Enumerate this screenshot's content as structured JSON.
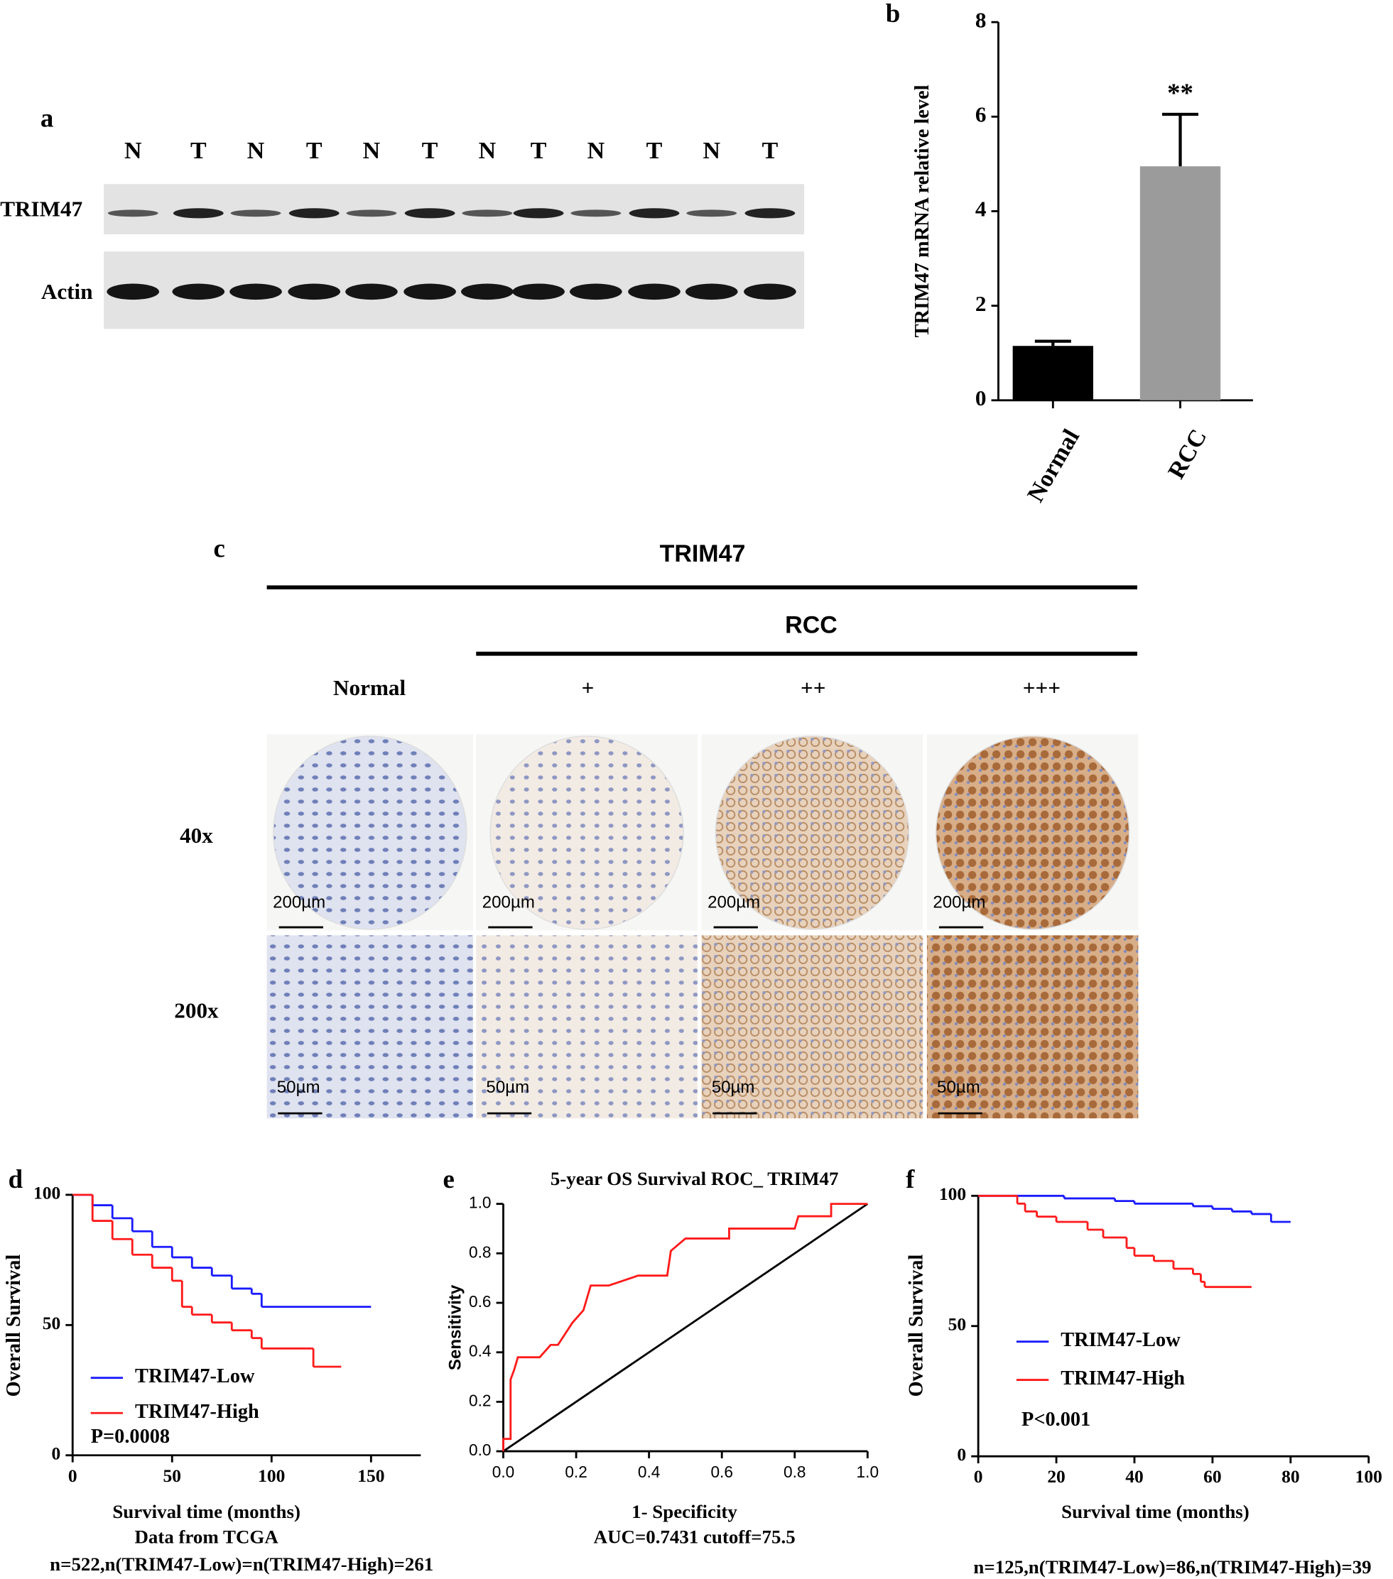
{
  "panel_labels": [
    "a",
    "b",
    "c",
    "d",
    "e",
    "f"
  ],
  "blot": {
    "lanes": [
      "N",
      "T",
      "N",
      "T",
      "N",
      "T",
      "N",
      "T",
      "N",
      "T",
      "N",
      "T"
    ],
    "rows": [
      "TRIM47",
      "Actin"
    ]
  },
  "ihc": {
    "title": "TRIM47",
    "group": "RCC",
    "columns": [
      "Normal",
      "+",
      "++",
      "+++"
    ],
    "rows": [
      "40x",
      "200x"
    ],
    "scale_bars": [
      "200µm",
      "50µm"
    ]
  },
  "chart_data": [
    {
      "type": "bar",
      "y_label": "TRIM47 mRNA relative level",
      "categories": [
        "Normal",
        "RCC"
      ],
      "values": [
        1.15,
        4.95
      ],
      "errors": [
        0.1,
        1.1
      ],
      "colors": [
        "#000000",
        "#9b9b9c"
      ],
      "annotation": "**",
      "ylim": [
        0,
        8
      ],
      "yticks": [
        0,
        2,
        4,
        6,
        8
      ]
    },
    {
      "type": "step",
      "y_label": "Overall Survival",
      "x_label": "Survival time (months)",
      "notes": [
        "Data from TCGA",
        "n=522,n(TRIM47-Low)=n(TRIM47-High)=261"
      ],
      "p_value": "P=0.0008",
      "legend": "lower left",
      "xlim": [
        0,
        175
      ],
      "xticks": [
        0,
        50,
        100,
        150
      ],
      "ylim": [
        0,
        100
      ],
      "yticks": [
        0,
        50,
        100
      ],
      "series": [
        {
          "name": "TRIM47-Low",
          "color": "#1a1aff",
          "x": [
            0,
            10,
            20,
            30,
            40,
            50,
            60,
            70,
            80,
            90,
            95,
            150
          ],
          "values": [
            100,
            96,
            91,
            86,
            80,
            76,
            72,
            69,
            64,
            62,
            57,
            57
          ]
        },
        {
          "name": "TRIM47-High",
          "color": "#ff1a1a",
          "x": [
            0,
            10,
            20,
            30,
            40,
            50,
            55,
            60,
            70,
            80,
            90,
            95,
            120,
            121,
            135
          ],
          "values": [
            100,
            90,
            83,
            77,
            72,
            67,
            57,
            54,
            51,
            48,
            45,
            41,
            41,
            34,
            34
          ]
        }
      ]
    },
    {
      "type": "line",
      "title": "5-year OS Survival ROC_ TRIM47",
      "y_label": "Sensitivity",
      "x_label": "1- Specificity",
      "notes": [
        "AUC=0.7431 cutoff=75.5"
      ],
      "xlim": [
        0,
        1
      ],
      "ylim": [
        0,
        1
      ],
      "xticks": [
        {
          "value": 0,
          "label": "0.0"
        },
        0.2,
        0.4,
        0.6,
        0.8,
        {
          "value": 1,
          "label": "1.0"
        }
      ],
      "yticks": [
        {
          "value": 0,
          "label": "0.0"
        },
        0.2,
        0.4,
        0.6,
        0.8,
        {
          "value": 1,
          "label": "1.0"
        }
      ],
      "series": [
        {
          "color": "#ff1a1a",
          "x": [
            0,
            0,
            0.02,
            0.02,
            0.03,
            0.04,
            0.1,
            0.13,
            0.15,
            0.19,
            0.22,
            0.24,
            0.29,
            0.37,
            0.45,
            0.46,
            0.5,
            0.62,
            0.62,
            0.8,
            0.81,
            0.9,
            0.9,
            1
          ],
          "values": [
            0,
            0.05,
            0.05,
            0.29,
            0.33,
            0.38,
            0.38,
            0.43,
            0.43,
            0.52,
            0.57,
            0.67,
            0.67,
            0.71,
            0.71,
            0.81,
            0.86,
            0.86,
            0.9,
            0.9,
            0.95,
            0.95,
            1,
            1
          ]
        }
      ]
    },
    {
      "type": "step",
      "y_label": "Overall Survival",
      "x_label": "Survival time (months)",
      "notes": [
        "n=125,n(TRIM47-Low)=86,n(TRIM47-High)=39"
      ],
      "p_value": "P<0.001",
      "legend": "center left",
      "xlim": [
        0,
        100
      ],
      "xticks": [
        0,
        20,
        40,
        60,
        80,
        100
      ],
      "ylim": [
        0,
        100
      ],
      "yticks": [
        0,
        50,
        100
      ],
      "series": [
        {
          "name": "TRIM47-Low",
          "color": "#1a1aff",
          "x": [
            0,
            22,
            35,
            40,
            55,
            60,
            65,
            70,
            75,
            80
          ],
          "values": [
            100,
            99,
            98,
            97,
            96,
            95,
            94,
            93,
            90,
            90
          ]
        },
        {
          "name": "TRIM47-High",
          "color": "#ff1a1a",
          "x": [
            0,
            10,
            12,
            15,
            20,
            28,
            32,
            38,
            40,
            45,
            50,
            55,
            57,
            58,
            70
          ],
          "values": [
            100,
            97,
            94,
            92,
            90,
            87,
            84,
            80,
            77,
            75,
            72,
            70,
            67,
            65,
            65
          ]
        }
      ]
    }
  ]
}
